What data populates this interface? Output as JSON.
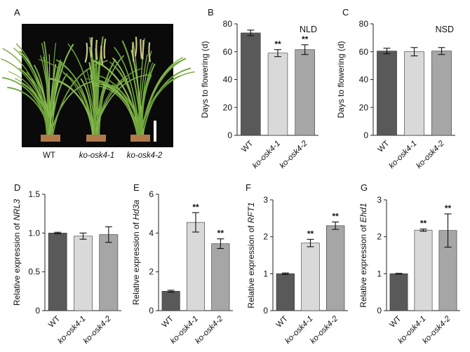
{
  "photo": {
    "panel_label": "A",
    "caption": [
      "WT",
      "ko-osk4-1",
      "ko-osk4-2"
    ]
  },
  "colors": {
    "bars": [
      "#595959",
      "#d9d9d9",
      "#a6a6a6"
    ],
    "background_photo": "#0a0a0a",
    "plant_green": "#6fa53a"
  },
  "chart_data": [
    {
      "panel": "B",
      "type": "bar",
      "condition": "NLD",
      "categories": [
        "WT",
        "ko-osk4-1",
        "ko-osk4-2"
      ],
      "values": [
        73.5,
        59,
        61.5
      ],
      "errors": [
        2.0,
        2.5,
        3.5
      ],
      "significance": [
        "",
        "**",
        "**"
      ],
      "ylabel": "Days to flowering (d)",
      "ylim": [
        0,
        80
      ],
      "yticks": [
        0,
        20,
        40,
        60,
        80
      ]
    },
    {
      "panel": "C",
      "type": "bar",
      "condition": "NSD",
      "categories": [
        "WT",
        "ko-osk4-1",
        "ko-osk4-2"
      ],
      "values": [
        60.5,
        60,
        60.5
      ],
      "errors": [
        2.0,
        3.0,
        2.5
      ],
      "significance": [
        "",
        "",
        ""
      ],
      "ylabel": "Days to flowering (d)",
      "ylim": [
        0,
        80
      ],
      "yticks": [
        0,
        20,
        40,
        60,
        80
      ]
    },
    {
      "panel": "D",
      "type": "bar",
      "condition": "",
      "categories": [
        "WT",
        "ko-osk4-1",
        "ko-osk4-2"
      ],
      "values": [
        1.0,
        0.96,
        0.98
      ],
      "errors": [
        0.01,
        0.04,
        0.1
      ],
      "significance": [
        "",
        "",
        ""
      ],
      "ylabel_prefix": "Relative expression of ",
      "gene": "NRL3",
      "ylim": [
        0,
        1.5
      ],
      "yticks": [
        0.0,
        0.5,
        1.0,
        1.5
      ],
      "ytick_labels": [
        "0",
        "0.5",
        "1.0",
        "1.5"
      ]
    },
    {
      "panel": "E",
      "type": "bar",
      "condition": "",
      "categories": [
        "WT",
        "ko-osk4-1",
        "ko-osk4-2"
      ],
      "values": [
        1.0,
        4.55,
        3.45
      ],
      "errors": [
        0.05,
        0.5,
        0.25
      ],
      "significance": [
        "",
        "**",
        "**"
      ],
      "ylabel_prefix": "Relative expression of ",
      "gene": "Hd3a",
      "ylim": [
        0,
        6
      ],
      "yticks": [
        0,
        2,
        4,
        6
      ],
      "ytick_labels": [
        "0",
        "2",
        "4",
        "6"
      ]
    },
    {
      "panel": "F",
      "type": "bar",
      "condition": "",
      "categories": [
        "WT",
        "ko-osk4-1",
        "ko-osk4-2"
      ],
      "values": [
        1.0,
        1.83,
        2.3
      ],
      "errors": [
        0.02,
        0.1,
        0.1
      ],
      "significance": [
        "",
        "**",
        "**"
      ],
      "ylabel_prefix": "Relative expression of ",
      "gene": "RFT1",
      "ylim": [
        0,
        3
      ],
      "yticks": [
        0,
        1,
        2,
        3
      ],
      "ytick_labels": [
        "0",
        "1",
        "2",
        "3"
      ]
    },
    {
      "panel": "G",
      "type": "bar",
      "condition": "",
      "categories": [
        "WT",
        "ko-osk4-1",
        "ko-osk4-2"
      ],
      "values": [
        1.0,
        2.18,
        2.17
      ],
      "errors": [
        0.01,
        0.03,
        0.45
      ],
      "significance": [
        "",
        "**",
        "**"
      ],
      "ylabel_prefix": "Relative expression of ",
      "gene": "Ehd1",
      "ylim": [
        0,
        3
      ],
      "yticks": [
        0,
        1,
        2,
        3
      ],
      "ytick_labels": [
        "0",
        "1",
        "2",
        "3"
      ]
    }
  ]
}
